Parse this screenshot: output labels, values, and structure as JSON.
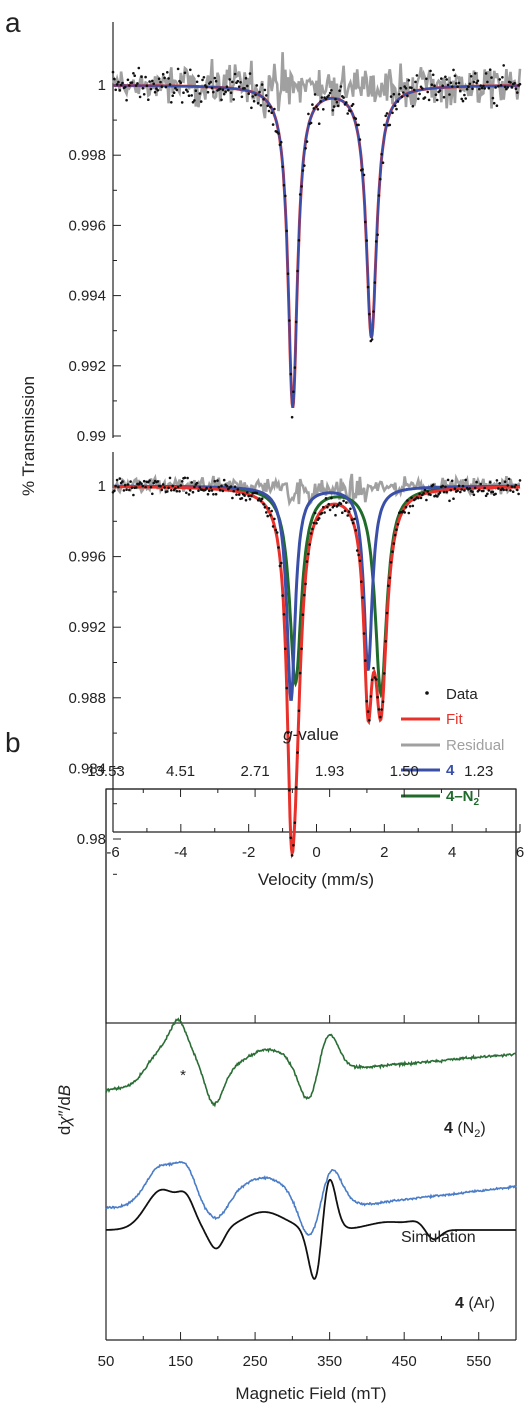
{
  "figure": {
    "panel_a_label": "a",
    "panel_b_label": "b"
  },
  "colors": {
    "fit": "#e8312a",
    "residual": "#a0a0a0",
    "comp4": "#3a4fa8",
    "comp4N2": "#1f6b2b",
    "data": "#111111",
    "epr_n2": "#2a6e35",
    "epr_ar": "#4a7cc7",
    "simulation": "#111111"
  },
  "chart_data": [
    {
      "type": "line",
      "panel": "a (top)",
      "ylabel": "% Transmission",
      "xlabel": "",
      "xlim": [
        -6,
        6
      ],
      "ylim": [
        0.99,
        1.0015
      ],
      "ytick_labels": [
        "0.99",
        "0.992",
        "0.994",
        "0.996",
        "0.998",
        "1"
      ],
      "ytick_values": [
        0.99,
        0.992,
        0.994,
        0.996,
        0.998,
        1.0
      ],
      "lorentzians": [
        {
          "center": -0.7,
          "depth": 0.00915,
          "hwhm": 0.17
        },
        {
          "center": 1.62,
          "depth": 0.00715,
          "hwhm": 0.19
        }
      ],
      "series": [
        {
          "key": "data",
          "style": "points"
        },
        {
          "key": "residual",
          "style": "line"
        },
        {
          "key": "fit",
          "style": "line"
        },
        {
          "key": "comp4",
          "style": "line"
        }
      ]
    },
    {
      "type": "line",
      "panel": "a (bottom)",
      "xlabel": "Velocity (mm/s)",
      "ylabel": "% Transmission",
      "xlim": [
        -6,
        6
      ],
      "ylim": [
        0.977,
        1.0015
      ],
      "xtick_labels": [
        "-6",
        "-4",
        "-2",
        "0",
        "2",
        "4",
        "6"
      ],
      "xtick_values": [
        -6,
        -4,
        -2,
        0,
        2,
        4,
        6
      ],
      "ytick_labels": [
        "0.98",
        "0.984",
        "0.988",
        "0.992",
        "0.996",
        "1"
      ],
      "ytick_values": [
        0.98,
        0.984,
        0.988,
        0.992,
        0.996,
        1.0
      ],
      "components": {
        "comp4": [
          {
            "center": -0.75,
            "depth": 0.0121,
            "hwhm": 0.15
          },
          {
            "center": 1.52,
            "depth": 0.0104,
            "hwhm": 0.15
          }
        ],
        "comp4N2": [
          {
            "center": -0.62,
            "depth": 0.0111,
            "hwhm": 0.21
          },
          {
            "center": 1.9,
            "depth": 0.0117,
            "hwhm": 0.21
          }
        ]
      },
      "legend": [
        {
          "key": "data",
          "label": "Data",
          "style": "point"
        },
        {
          "key": "fit",
          "label": "Fit",
          "style": "line"
        },
        {
          "key": "residual",
          "label": "Residual",
          "style": "line"
        },
        {
          "key": "comp4",
          "label": "4",
          "style": "line"
        },
        {
          "key": "comp4N2",
          "label": "4–N",
          "sub": "2",
          "style": "line"
        }
      ],
      "legend_position": "bottom-right"
    },
    {
      "type": "line",
      "panel": "b",
      "xlabel": "Magnetic Field (mT)",
      "ylabel_parts": {
        "pre": "d",
        "chi": "χ",
        "mid": "″/d",
        "var": "B"
      },
      "top_axis_label_italic": "g",
      "top_axis_label_rest": "-value",
      "top_tick_labels": [
        "13.53",
        "4.51",
        "2.71",
        "1.93",
        "1.50",
        "1.23"
      ],
      "top_tick_fields": [
        50,
        150,
        250,
        350,
        450,
        550
      ],
      "xlim": [
        50,
        600
      ],
      "xtick_labels": [
        "50",
        "150",
        "250",
        "350",
        "450",
        "550"
      ],
      "xtick_values": [
        50,
        150,
        250,
        350,
        450,
        550
      ],
      "asterisk": "*",
      "asterisk_field": 150,
      "labels": {
        "n2_bold": "4",
        "n2_rest_pre": " (N",
        "n2_sub": "2",
        "n2_rest_post": ")",
        "simulation": "Simulation",
        "ar_bold": "4",
        "ar_rest": " (Ar)"
      },
      "series": [
        {
          "key": "epr_n2",
          "name": "4 (N2)"
        },
        {
          "key": "simulation",
          "name": "Simulation"
        },
        {
          "key": "epr_ar",
          "name": "4 (Ar)"
        }
      ]
    }
  ]
}
